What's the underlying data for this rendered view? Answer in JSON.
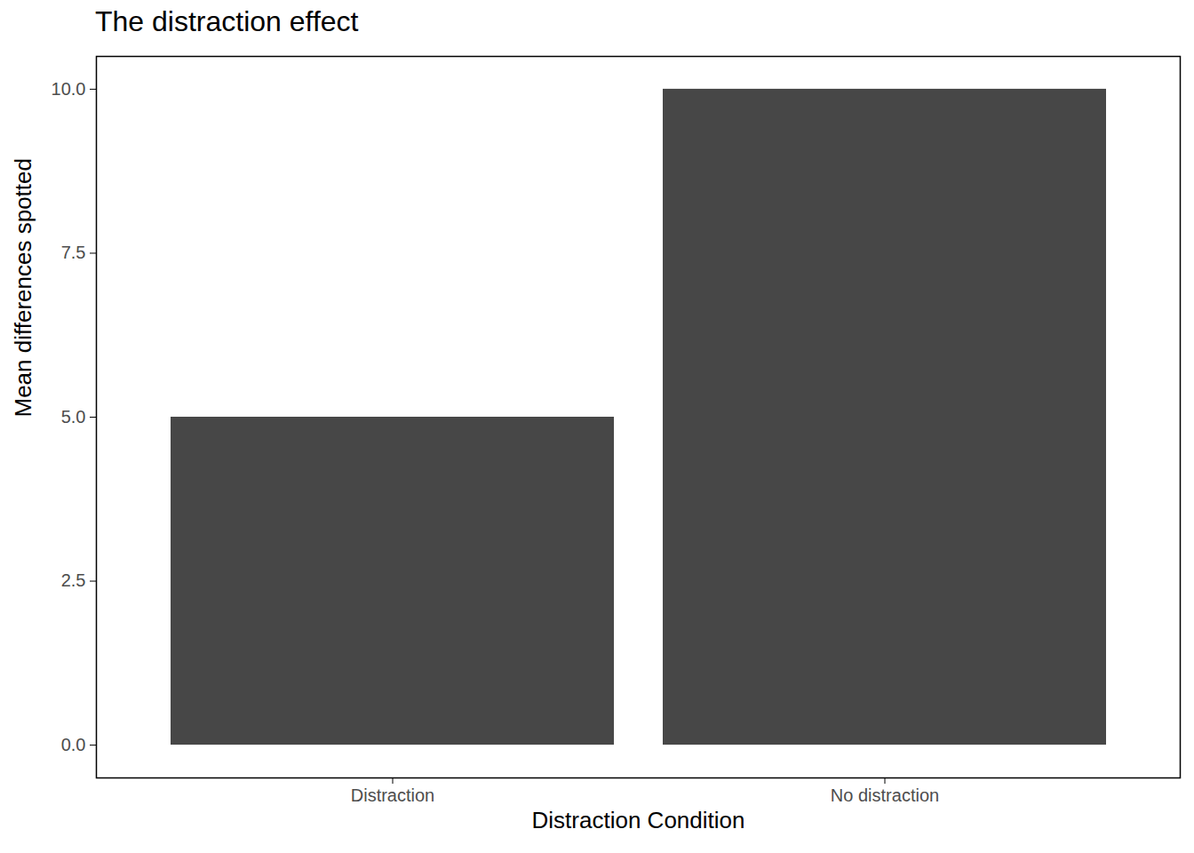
{
  "chart_data": {
    "type": "bar",
    "title": "The distraction effect",
    "x_label": "Distraction Condition",
    "y_label": "Mean differences spotted",
    "categories": [
      "Distraction",
      "No distraction"
    ],
    "values": [
      5,
      10
    ],
    "color": "#474747",
    "ylim": [
      -0.5,
      10.5
    ],
    "yticks": [
      {
        "value": 0,
        "label": "0.0"
      },
      2.5,
      {
        "value": 5,
        "label": "5.0"
      },
      7.5,
      {
        "value": 10,
        "label": "10.0"
      }
    ],
    "grid": false
  }
}
